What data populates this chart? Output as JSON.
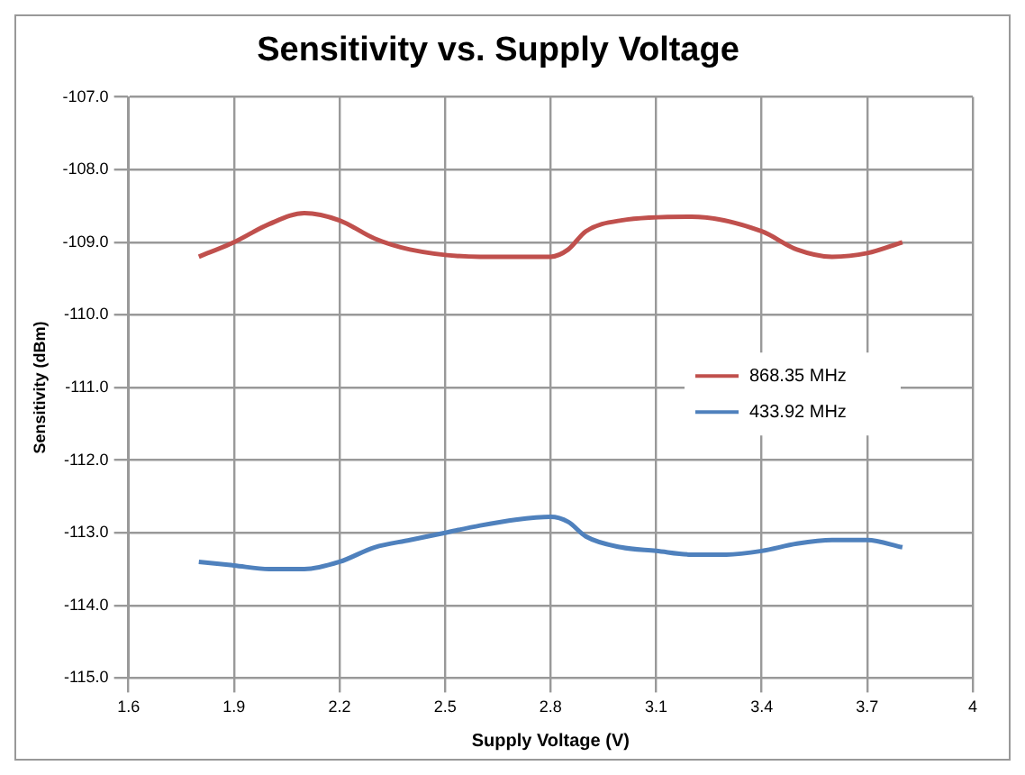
{
  "chart_data": {
    "type": "line",
    "title": "Sensitivity vs. Supply Voltage",
    "xlabel": "Supply Voltage (V)",
    "ylabel": "Sensitivity (dBm)",
    "xlim": [
      1.6,
      4
    ],
    "xticks": [
      1.6,
      1.9,
      2.2,
      2.5,
      2.8,
      3.1,
      3.4,
      3.7,
      4
    ],
    "ylim": [
      -115,
      -107
    ],
    "yticks": [
      {
        "value": -115,
        "label": "-115.0"
      },
      {
        "value": -114,
        "label": "-114.0"
      },
      {
        "value": -113,
        "label": "-113.0"
      },
      {
        "value": -112,
        "label": "-112.0"
      },
      {
        "value": -111,
        "label": "-111.0"
      },
      {
        "value": -110,
        "label": "-110.0"
      },
      {
        "value": -109,
        "label": "-109.0"
      },
      {
        "value": -108,
        "label": "-108.0"
      },
      {
        "value": -107,
        "label": "-107.0"
      }
    ],
    "grid": true,
    "legend": "right",
    "marker": "none",
    "line_style": "solid",
    "series": [
      {
        "name": "868.35 MHz",
        "color": "#c0504d",
        "x": [
          1.8,
          1.9,
          2.0,
          2.1,
          2.2,
          2.3,
          2.4,
          2.6,
          2.7,
          2.8,
          2.85,
          2.9,
          3.0,
          3.2,
          3.4,
          3.5,
          3.6,
          3.7,
          3.8
        ],
        "values": [
          -109.2,
          -109.0,
          -108.75,
          -108.6,
          -108.7,
          -108.95,
          -109.1,
          -109.2,
          -109.2,
          -109.2,
          -109.1,
          -108.85,
          -108.7,
          -108.65,
          -108.85,
          -109.1,
          -109.2,
          -109.15,
          -109.0
        ]
      },
      {
        "name": "433.92 MHz",
        "color": "#4f81bd",
        "x": [
          1.8,
          1.9,
          2.0,
          2.1,
          2.2,
          2.3,
          2.4,
          2.5,
          2.6,
          2.7,
          2.8,
          2.85,
          2.9,
          3.0,
          3.1,
          3.2,
          3.3,
          3.4,
          3.5,
          3.6,
          3.7,
          3.8
        ],
        "values": [
          -113.4,
          -113.45,
          -113.5,
          -113.5,
          -113.4,
          -113.2,
          -113.1,
          -113.0,
          -112.9,
          -112.82,
          -112.78,
          -112.85,
          -113.05,
          -113.2,
          -113.25,
          -113.3,
          -113.3,
          -113.25,
          -113.15,
          -113.1,
          -113.1,
          -113.2
        ]
      }
    ]
  }
}
